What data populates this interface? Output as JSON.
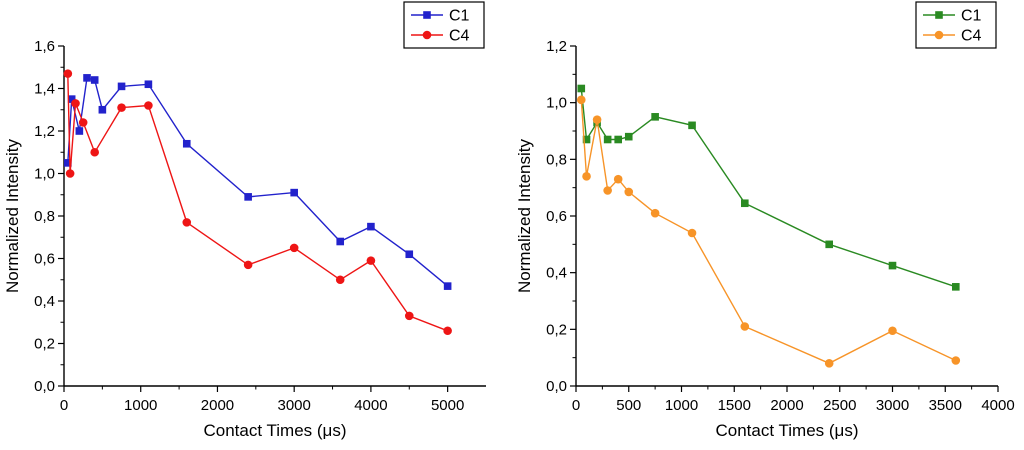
{
  "figure": {
    "background": "#ffffff"
  },
  "chart_data": [
    {
      "id": "left-chart",
      "type": "line",
      "title": "",
      "xlabel": "Contact Times (μs)",
      "ylabel": "Normalized Intensity",
      "xlim": [
        0,
        5500
      ],
      "ylim": [
        0.0,
        1.6
      ],
      "xticks": [
        0,
        1000,
        2000,
        3000,
        4000,
        5000
      ],
      "xtick_labels": [
        "0",
        "1000",
        "2000",
        "3000",
        "4000",
        "5000"
      ],
      "yticks": [
        0.0,
        0.2,
        0.4,
        0.6,
        0.8,
        1.0,
        1.2,
        1.4,
        1.6
      ],
      "ytick_labels": [
        "0,0",
        "0,2",
        "0,4",
        "0,6",
        "0,8",
        "1,0",
        "1,2",
        "1,4",
        "1,6"
      ],
      "grid": false,
      "legend_position": "top-right",
      "series": [
        {
          "name": "C1",
          "color": "#2222cc",
          "marker": "square",
          "x": [
            50,
            100,
            200,
            300,
            400,
            500,
            750,
            1100,
            1600,
            2400,
            3000,
            3600,
            4000,
            4500,
            5000
          ],
          "y": [
            1.05,
            1.35,
            1.2,
            1.45,
            1.44,
            1.3,
            1.41,
            1.42,
            1.14,
            0.89,
            0.91,
            0.68,
            0.75,
            0.62,
            0.47
          ]
        },
        {
          "name": "C4",
          "color": "#ee1515",
          "marker": "circle",
          "x": [
            50,
            80,
            150,
            250,
            400,
            750,
            1100,
            1600,
            2400,
            3000,
            3600,
            4000,
            4500,
            5000
          ],
          "y": [
            1.47,
            1.0,
            1.33,
            1.24,
            1.1,
            1.31,
            1.32,
            0.77,
            0.57,
            0.65,
            0.5,
            0.59,
            0.33,
            0.26
          ]
        }
      ]
    },
    {
      "id": "right-chart",
      "type": "line",
      "title": "",
      "xlabel": "Contact Times (μs)",
      "ylabel": "Normalized Intensity",
      "xlim": [
        0,
        4000
      ],
      "ylim": [
        0.0,
        1.2
      ],
      "xticks": [
        0,
        500,
        1000,
        1500,
        2000,
        2500,
        3000,
        3500,
        4000
      ],
      "xtick_labels": [
        "0",
        "500",
        "1000",
        "1500",
        "2000",
        "2500",
        "3000",
        "3500",
        "4000"
      ],
      "yticks": [
        0.0,
        0.2,
        0.4,
        0.6,
        0.8,
        1.0,
        1.2
      ],
      "ytick_labels": [
        "0,0",
        "0,2",
        "0,4",
        "0,6",
        "0,8",
        "1,0",
        "1,2"
      ],
      "grid": false,
      "legend_position": "top-right",
      "series": [
        {
          "name": "C1",
          "color": "#2a8a22",
          "marker": "square",
          "x": [
            50,
            100,
            200,
            300,
            400,
            500,
            750,
            1100,
            1600,
            2400,
            3000,
            3600
          ],
          "y": [
            1.05,
            0.87,
            0.93,
            0.87,
            0.87,
            0.88,
            0.95,
            0.92,
            0.645,
            0.5,
            0.425,
            0.35
          ]
        },
        {
          "name": "C4",
          "color": "#f79428",
          "marker": "circle",
          "x": [
            50,
            100,
            200,
            300,
            400,
            500,
            750,
            1100,
            1600,
            2400,
            3000,
            3600
          ],
          "y": [
            1.01,
            0.74,
            0.94,
            0.69,
            0.73,
            0.685,
            0.61,
            0.54,
            0.21,
            0.08,
            0.195,
            0.09
          ]
        }
      ]
    }
  ]
}
